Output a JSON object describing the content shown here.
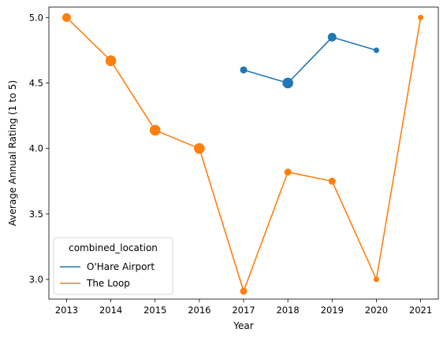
{
  "chart_data": {
    "type": "line",
    "title": "",
    "xlabel": "Year",
    "ylabel": "Average Annual Rating (1 to 5)",
    "xlim": [
      2012.6,
      2021.4
    ],
    "ylim": [
      2.85,
      5.08
    ],
    "x_ticks": [
      2013,
      2014,
      2015,
      2016,
      2017,
      2018,
      2019,
      2020,
      2021
    ],
    "y_ticks": [
      3.0,
      3.5,
      4.0,
      4.5,
      5.0
    ],
    "y_tick_labels": [
      "3.0",
      "3.5",
      "4.0",
      "4.5",
      "5.0"
    ],
    "grid": false,
    "legend": {
      "title": "combined_location",
      "placement": "lower-left"
    },
    "series": [
      {
        "name": "O'Hare Airport",
        "color": "#1f77b4",
        "x": [
          2017,
          2018,
          2019,
          2020
        ],
        "y": [
          4.6,
          4.5,
          4.85,
          4.75
        ],
        "marker_size": [
          3,
          5,
          4,
          2
        ]
      },
      {
        "name": "The Loop",
        "color": "#ff7f0e",
        "x": [
          2013,
          2014,
          2015,
          2016,
          2017,
          2018,
          2019,
          2020,
          2021
        ],
        "y": [
          5.0,
          4.67,
          4.14,
          4.0,
          2.91,
          3.82,
          3.75,
          3.0,
          5.0
        ],
        "marker_size": [
          4,
          5,
          5,
          5,
          3,
          3,
          3,
          2,
          2
        ]
      }
    ]
  }
}
